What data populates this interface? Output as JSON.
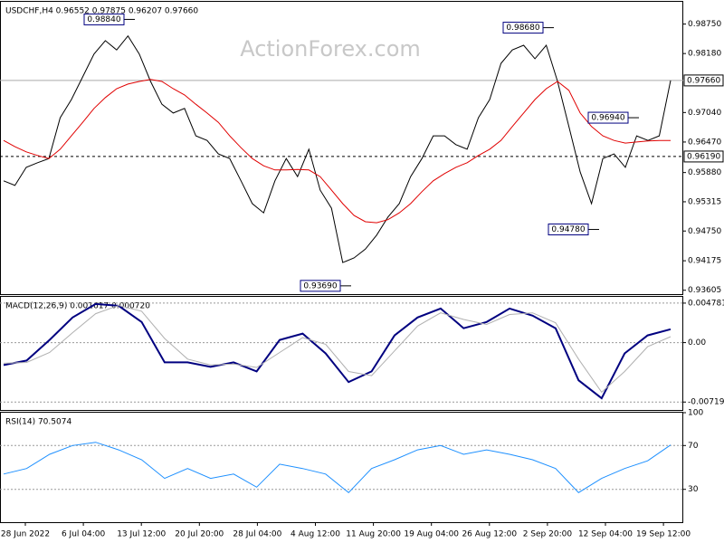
{
  "chart_data": [
    {
      "type": "line",
      "title": "USDCHF,H4  0.96552 0.97875 0.96207 0.97660",
      "watermark": "ActionForex.com",
      "series": [
        {
          "color": "#000000",
          "values": [
            0.9572,
            0.9563,
            0.9598,
            0.9607,
            0.9615,
            0.9694,
            0.9729,
            0.9773,
            0.9817,
            0.9843,
            0.9825,
            0.9852,
            0.9817,
            0.9764,
            0.972,
            0.9703,
            0.9712,
            0.9659,
            0.965,
            0.9624,
            0.9615,
            0.9572,
            0.9528,
            0.951,
            0.9572,
            0.9615,
            0.958,
            0.9633,
            0.9554,
            0.9519,
            0.9414,
            0.9423,
            0.944,
            0.9467,
            0.9502,
            0.9528,
            0.958,
            0.9615,
            0.9659,
            0.9659,
            0.9642,
            0.9633,
            0.9694,
            0.9729,
            0.9799,
            0.9825,
            0.9834,
            0.9808,
            0.9834,
            0.9764,
            0.9677,
            0.9589,
            0.9528,
            0.9615,
            0.9624,
            0.9598,
            0.9659,
            0.965,
            0.9659,
            0.9766
          ]
        },
        {
          "color": "#e00000",
          "values": [
            0.965,
            0.9638,
            0.9628,
            0.9621,
            0.9615,
            0.9633,
            0.9659,
            0.9685,
            0.9712,
            0.9733,
            0.975,
            0.9759,
            0.9764,
            0.9768,
            0.9764,
            0.975,
            0.9738,
            0.972,
            0.9703,
            0.9685,
            0.9659,
            0.9636,
            0.9615,
            0.9601,
            0.9593,
            0.9593,
            0.9594,
            0.9593,
            0.958,
            0.9554,
            0.9528,
            0.9505,
            0.9493,
            0.9491,
            0.9497,
            0.951,
            0.9528,
            0.9551,
            0.9572,
            0.9586,
            0.9598,
            0.9607,
            0.9621,
            0.9633,
            0.965,
            0.9677,
            0.9703,
            0.9729,
            0.975,
            0.9764,
            0.9747,
            0.9703,
            0.9677,
            0.9659,
            0.965,
            0.9645,
            0.9647,
            0.9649,
            0.965,
            0.965
          ]
        }
      ],
      "ylim": [
        0.9353,
        0.9918
      ],
      "yticks": [
        0.93605,
        0.94175,
        {
          "value": 0.9475,
          "label": "0.94750"
        },
        0.95315,
        {
          "value": 0.9588,
          "label": "0.95880"
        },
        {
          "value": 0.9647,
          "label": "0.96470"
        },
        {
          "value": 0.9704,
          "label": "0.97040"
        },
        {
          "value": 0.9818,
          "label": "0.98180"
        },
        {
          "value": 0.9875,
          "label": "0.98750"
        }
      ],
      "levels": [
        {
          "value": 0.9766,
          "label": "0.97660",
          "style": "solid"
        },
        {
          "value": 0.9619,
          "label": "0.96190",
          "style": "dashed"
        }
      ],
      "annotations": [
        {
          "value": 0.9884,
          "label": "0.98840"
        },
        {
          "value": 0.9868,
          "label": "0.98680"
        },
        {
          "value": 0.9369,
          "label": "0.93690"
        },
        {
          "value": 0.9478,
          "label": "0.94780"
        },
        {
          "value": 0.9694,
          "label": "0.96940"
        }
      ]
    },
    {
      "type": "line",
      "title": "MACD(12,26,9) 0.001617 0.000720",
      "series": [
        {
          "color": "#000080",
          "values": [
            -0.00272,
            -0.00217,
            0.00033,
            0.00304,
            0.00467,
            0.00446,
            0.0025,
            -0.00239,
            -0.00239,
            -0.00293,
            -0.00239,
            -0.00348,
            0.00033,
            0.00109,
            -0.0013,
            -0.00478,
            -0.00348,
            0.00087,
            0.00304,
            0.00413,
            0.00174,
            0.0025,
            0.00413,
            0.00326,
            0.00174,
            -0.00456,
            -0.00674,
            -0.0013,
            0.00087,
            0.00162
          ]
        },
        {
          "color": "#b0b0b0",
          "values": [
            -0.0025,
            -0.0024,
            -0.0012,
            0.0012,
            0.0035,
            0.0045,
            0.0038,
            0.0005,
            -0.002,
            -0.0027,
            -0.0026,
            -0.003,
            -0.0012,
            0.0006,
            -0.0002,
            -0.0035,
            -0.004,
            -0.001,
            0.002,
            0.0036,
            0.0028,
            0.0022,
            0.0034,
            0.0036,
            0.0024,
            -0.002,
            -0.006,
            -0.0035,
            -0.0005,
            0.00072
          ]
        }
      ],
      "ylim": [
        -0.00815,
        0.00554
      ],
      "yticks": [
        -0.007191,
        {
          "value": 0,
          "label": "0.00"
        },
        0.004781
      ]
    },
    {
      "type": "line",
      "title": "RSI(14) 70.5074",
      "series": [
        {
          "color": "#1e90ff",
          "values": [
            44,
            49,
            62,
            70,
            73,
            66,
            57,
            40,
            49,
            40,
            44,
            32,
            53,
            49,
            44,
            27,
            49,
            57,
            66,
            70,
            62,
            66,
            62,
            57,
            49,
            27,
            40,
            49,
            56,
            70.5074
          ]
        }
      ],
      "ylim": [
        0,
        100
      ],
      "yticks": [
        30,
        70,
        100
      ],
      "xtick_labels": [
        "28 Jun 2022",
        "6 Jul 04:00",
        "13 Jul 12:00",
        "20 Jul 20:00",
        "28 Jul 04:00",
        "4 Aug 12:00",
        "11 Aug 20:00",
        "19 Aug 04:00",
        "26 Aug 12:00",
        "2 Sep 20:00",
        "12 Sep 04:00",
        "19 Sep 12:00"
      ]
    }
  ]
}
